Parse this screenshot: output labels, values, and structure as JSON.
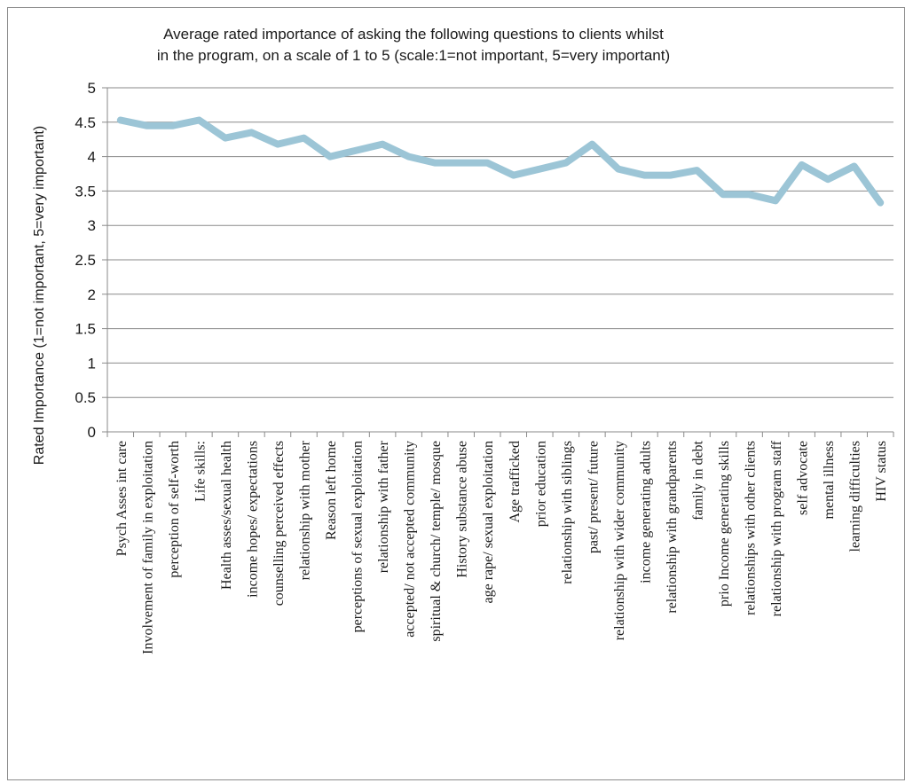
{
  "chart_data": {
    "type": "line",
    "title_lines": [
      "Average rated importance of asking the following questions to clients whilst",
      "in the program, on a scale of 1 to 5 (scale:1=not important, 5=very important)"
    ],
    "ylabel": "Rated Importance (1=not important, 5=very important)",
    "ylim": [
      0,
      5
    ],
    "yticks": [
      "0",
      "0.5",
      "1",
      "1.5",
      "2",
      "2.5",
      "3",
      "3.5",
      "4",
      "4.5",
      "5"
    ],
    "grid": true,
    "legend": "none",
    "line_color": "#9cc5d6",
    "categories": [
      "Psych Asses int  care",
      "Involvement of family in exploitation",
      "perception of self-worth",
      "Life skills:",
      "Health asses/sexual health",
      "income  hopes/ expectations",
      "counselling  perceived effects",
      "relationship with  mother",
      "Reason left home",
      "perceptions of sexual exploitation",
      "relationship with father",
      "accepted/ not accepted  community",
      "spiritual & church/ temple/ mosque",
      "History substance abuse",
      "age rape/ sexual exploitation",
      "Age trafficked",
      "prior education",
      "relationship  with siblings",
      "past/ present/ future",
      "relationship with wider community",
      "income generating adults",
      "relationship with grandparents",
      "family in debt",
      "prio Income  generating skills",
      "relationships with other clients",
      "relationship with program staff",
      "self advocate",
      "mental illness",
      "learning difficulties",
      "HIV status"
    ],
    "values": [
      4.53,
      4.45,
      4.45,
      4.53,
      4.27,
      4.35,
      4.18,
      4.27,
      4.0,
      4.09,
      4.18,
      4.0,
      3.91,
      3.91,
      3.91,
      3.73,
      3.82,
      3.91,
      4.18,
      3.82,
      3.73,
      3.73,
      3.8,
      3.45,
      3.45,
      3.36,
      3.88,
      3.67,
      3.86,
      3.33
    ]
  }
}
